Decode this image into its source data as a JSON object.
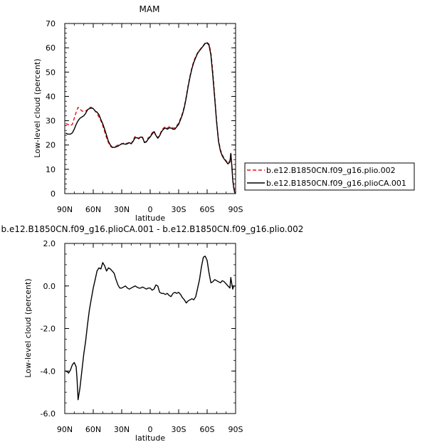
{
  "chart_data": [
    {
      "type": "line",
      "title": "MAM",
      "xlabel": "latitude",
      "ylabel": "Low-level cloud (percent)",
      "xlim": [
        90,
        -90
      ],
      "ylim": [
        0,
        70
      ],
      "xticks": [
        {
          "v": 90,
          "label": "90N"
        },
        {
          "v": 60,
          "label": "60N"
        },
        {
          "v": 30,
          "label": "30N"
        },
        {
          "v": 0,
          "label": "0"
        },
        {
          "v": -30,
          "label": "30S"
        },
        {
          "v": -60,
          "label": "60S"
        },
        {
          "v": -90,
          "label": "90S"
        }
      ],
      "yticks": [
        {
          "v": 0,
          "label": "0"
        },
        {
          "v": 10,
          "label": "10"
        },
        {
          "v": 20,
          "label": "20"
        },
        {
          "v": 30,
          "label": "30"
        },
        {
          "v": 40,
          "label": "40"
        },
        {
          "v": 50,
          "label": "50"
        },
        {
          "v": 60,
          "label": "60"
        },
        {
          "v": 70,
          "label": "70"
        }
      ],
      "legend_position": "right",
      "series": [
        {
          "name": "b.e12.B1850CN.f09_g16.plio.002",
          "color": "#e8101a",
          "dash": "dashed",
          "x": [
            89,
            87,
            84,
            82,
            80,
            78,
            76,
            74,
            72,
            70,
            68,
            66,
            64,
            62,
            60,
            58,
            56,
            54,
            52,
            50,
            48,
            46,
            44,
            42,
            40,
            38,
            36,
            34,
            32,
            30,
            28,
            26,
            24,
            22,
            20,
            18,
            16,
            14,
            12,
            10,
            8,
            6,
            4,
            2,
            0,
            -2,
            -4,
            -6,
            -8,
            -10,
            -12,
            -14,
            -16,
            -18,
            -20,
            -22,
            -24,
            -26,
            -28,
            -30,
            -32,
            -34,
            -36,
            -38,
            -40,
            -42,
            -44,
            -46,
            -48,
            -50,
            -52,
            -54,
            -56,
            -58,
            -60,
            -62,
            -64,
            -66,
            -68,
            -70,
            -72,
            -74,
            -76,
            -78,
            -80,
            -82,
            -84,
            -85,
            -86,
            -87,
            -88,
            -89,
            -90
          ],
          "y": [
            28.8,
            28.5,
            28.0,
            28.5,
            31.0,
            33.5,
            35.5,
            34.8,
            34.0,
            33.8,
            34.0,
            34.5,
            35.5,
            35.5,
            35.0,
            34.0,
            33.0,
            31.5,
            30.0,
            28.0,
            25.5,
            23.0,
            21.0,
            19.5,
            19.0,
            19.2,
            19.5,
            20.0,
            20.0,
            20.5,
            20.8,
            20.5,
            20.8,
            21.0,
            20.5,
            22.0,
            23.5,
            23.0,
            22.5,
            23.5,
            23.2,
            21.0,
            21.5,
            23.0,
            23.5,
            25.0,
            25.8,
            24.0,
            23.0,
            24.0,
            26.0,
            27.0,
            27.5,
            27.0,
            27.5,
            27.5,
            27.0,
            27.0,
            28.0,
            29.0,
            31.0,
            33.0,
            36.0,
            40.0,
            44.5,
            48.5,
            52.0,
            54.5,
            56.5,
            58.0,
            59.0,
            60.0,
            61.0,
            62.0,
            62.2,
            61.5,
            58.0,
            50.0,
            40.0,
            30.0,
            22.0,
            18.0,
            16.0,
            14.5,
            13.5,
            12.5,
            13.5,
            17.0,
            12.0,
            6.0,
            3.0,
            1.0,
            0.0
          ]
        },
        {
          "name": "b.e12.B1850CN.f09_g16.plioCA.001",
          "color": "#000000",
          "dash": "solid",
          "x": [
            89,
            87,
            84,
            82,
            80,
            78,
            76,
            74,
            72,
            70,
            68,
            66,
            64,
            62,
            60,
            58,
            56,
            54,
            52,
            50,
            48,
            46,
            44,
            42,
            40,
            38,
            36,
            34,
            32,
            30,
            28,
            26,
            24,
            22,
            20,
            18,
            16,
            14,
            12,
            10,
            8,
            6,
            4,
            2,
            0,
            -2,
            -4,
            -6,
            -8,
            -10,
            -12,
            -14,
            -16,
            -18,
            -20,
            -22,
            -24,
            -26,
            -28,
            -30,
            -32,
            -34,
            -36,
            -38,
            -40,
            -42,
            -44,
            -46,
            -48,
            -50,
            -52,
            -54,
            -56,
            -58,
            -60,
            -62,
            -64,
            -66,
            -68,
            -70,
            -72,
            -74,
            -76,
            -78,
            -80,
            -82,
            -84,
            -85,
            -86,
            -87,
            -88,
            -89,
            -90
          ],
          "y": [
            24.9,
            24.5,
            24.5,
            25.0,
            26.5,
            28.5,
            30.0,
            31.0,
            31.5,
            32.0,
            33.0,
            34.5,
            35.0,
            35.2,
            35.0,
            34.0,
            33.5,
            32.5,
            30.5,
            28.8,
            26.5,
            24.0,
            21.5,
            20.0,
            19.0,
            19.0,
            19.2,
            19.5,
            20.0,
            20.5,
            20.5,
            20.3,
            20.5,
            21.0,
            20.5,
            21.5,
            23.0,
            23.0,
            22.8,
            23.3,
            23.0,
            21.0,
            21.3,
            22.5,
            23.3,
            24.5,
            25.5,
            24.0,
            22.8,
            23.8,
            25.5,
            26.5,
            27.0,
            26.5,
            27.0,
            27.0,
            26.5,
            26.5,
            27.5,
            28.5,
            30.5,
            32.5,
            35.5,
            39.5,
            44.0,
            48.0,
            51.5,
            54.0,
            56.0,
            57.8,
            58.8,
            59.8,
            60.8,
            61.8,
            62.0,
            61.0,
            57.0,
            48.5,
            39.0,
            29.5,
            21.5,
            17.5,
            15.5,
            14.2,
            13.2,
            12.2,
            13.0,
            16.5,
            11.5,
            5.5,
            2.5,
            0.5,
            0.0
          ]
        }
      ]
    },
    {
      "type": "line",
      "title": "b.e12.B1850CN.f09_g16.plioCA.001 - b.e12.B1850CN.f09_g16.plio.002",
      "xlabel": "latitude",
      "ylabel": "Low-level cloud (percent)",
      "xlim": [
        90,
        -90
      ],
      "ylim": [
        -6.0,
        2.0
      ],
      "xticks": [
        {
          "v": 90,
          "label": "90N"
        },
        {
          "v": 60,
          "label": "60N"
        },
        {
          "v": 30,
          "label": "30N"
        },
        {
          "v": 0,
          "label": "0"
        },
        {
          "v": -30,
          "label": "30S"
        },
        {
          "v": -60,
          "label": "60S"
        },
        {
          "v": -90,
          "label": "90S"
        }
      ],
      "yticks": [
        {
          "v": -6.0,
          "label": "-6.0"
        },
        {
          "v": -4.0,
          "label": "-4.0"
        },
        {
          "v": -2.0,
          "label": "-2.0"
        },
        {
          "v": 0.0,
          "label": "0.0"
        },
        {
          "v": 2.0,
          "label": "2.0"
        }
      ],
      "series": [
        {
          "color": "#000000",
          "dash": "solid",
          "x": [
            89,
            87,
            86,
            84,
            82,
            80,
            78,
            77,
            76,
            74,
            72,
            70,
            68,
            66,
            64,
            62,
            60,
            58,
            56,
            54,
            52,
            50,
            48,
            46,
            44,
            42,
            40,
            38,
            36,
            34,
            32,
            30,
            28,
            26,
            24,
            22,
            20,
            18,
            16,
            14,
            12,
            10,
            8,
            6,
            4,
            2,
            0,
            -2,
            -4,
            -6,
            -8,
            -10,
            -12,
            -14,
            -16,
            -18,
            -20,
            -22,
            -24,
            -26,
            -28,
            -30,
            -32,
            -34,
            -36,
            -38,
            -40,
            -42,
            -44,
            -46,
            -48,
            -50,
            -52,
            -54,
            -56,
            -58,
            -60,
            -62,
            -64,
            -66,
            -68,
            -70,
            -72,
            -74,
            -76,
            -78,
            -80,
            -82,
            -84,
            -85,
            -86,
            -87,
            -88,
            -89
          ],
          "y": [
            -4.0,
            -4.05,
            -4.1,
            -3.95,
            -3.7,
            -3.6,
            -3.8,
            -4.4,
            -5.35,
            -4.8,
            -4.0,
            -3.2,
            -2.6,
            -1.8,
            -1.1,
            -0.6,
            -0.1,
            0.3,
            0.7,
            0.85,
            0.8,
            1.1,
            0.95,
            0.7,
            0.85,
            0.8,
            0.7,
            0.6,
            0.3,
            0.05,
            -0.1,
            -0.1,
            -0.05,
            0.0,
            -0.1,
            -0.15,
            -0.1,
            -0.05,
            0.0,
            -0.05,
            -0.1,
            -0.1,
            -0.05,
            -0.1,
            -0.15,
            -0.1,
            -0.1,
            -0.2,
            -0.15,
            0.05,
            0.0,
            -0.3,
            -0.35,
            -0.35,
            -0.4,
            -0.35,
            -0.45,
            -0.5,
            -0.35,
            -0.3,
            -0.35,
            -0.3,
            -0.4,
            -0.55,
            -0.65,
            -0.8,
            -0.7,
            -0.65,
            -0.6,
            -0.65,
            -0.5,
            -0.1,
            0.3,
            0.9,
            1.35,
            1.4,
            1.2,
            0.6,
            0.15,
            0.2,
            0.3,
            0.25,
            0.2,
            0.15,
            0.25,
            0.2,
            0.1,
            0.0,
            -0.1,
            0.4,
            0.1,
            -0.15,
            0.0,
            0.0
          ]
        }
      ]
    }
  ]
}
